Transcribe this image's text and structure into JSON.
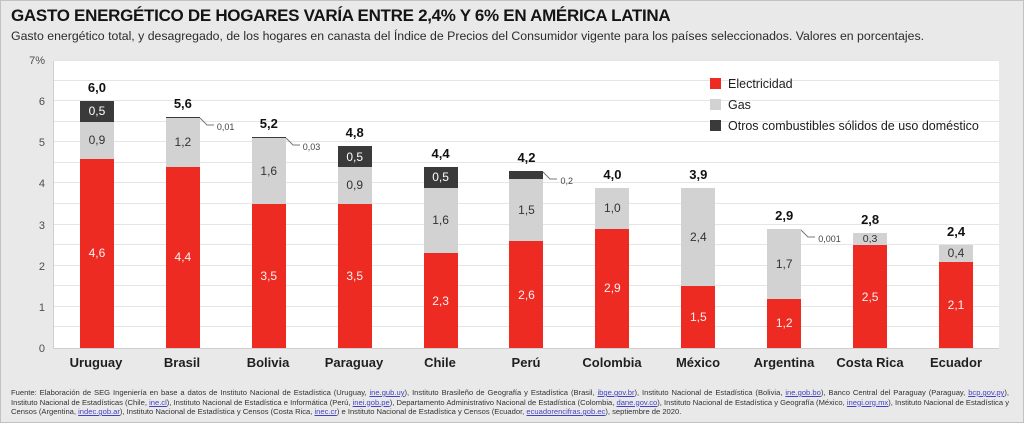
{
  "header": {
    "title": "GASTO ENERGÉTICO DE HOGARES VARÍA ENTRE 2,4% Y 6% EN AMÉRICA LATINA",
    "subtitle": "Gasto energético total, y desagregado, de los hogares en canasta del Índice de Precios del Consumidor vigente para los países seleccionados. Valores en porcentajes."
  },
  "colors": {
    "electricidad": "#ee2b22",
    "gas": "#d2d2d2",
    "otros": "#3a3a3a",
    "background": "#e9e9e9",
    "plot": "#ffffff"
  },
  "chart_data": {
    "type": "bar",
    "stacked": true,
    "ylim": [
      0,
      7
    ],
    "ytick_step": 0.5,
    "ytick_labels": [
      "0",
      "1",
      "2",
      "3",
      "4",
      "5",
      "6",
      "7%"
    ],
    "grid": true,
    "legend_position": "top-right",
    "categories": [
      "Uruguay",
      "Brasil",
      "Bolivia",
      "Paraguay",
      "Chile",
      "Perú",
      "Colombia",
      "México",
      "Argentina",
      "Costa Rica",
      "Ecuador"
    ],
    "series": [
      {
        "name": "Electricidad",
        "color": "#ee2b22",
        "values": [
          4.6,
          4.4,
          3.5,
          3.5,
          2.3,
          2.6,
          2.9,
          1.5,
          1.2,
          2.5,
          2.1
        ],
        "labels": [
          "4,6",
          "4,4",
          "3,5",
          "3,5",
          "2,3",
          "2,6",
          "2,9",
          "1,5",
          "1,2",
          "2,5",
          "2,1"
        ],
        "label_mode": [
          "inside",
          "inside",
          "inside",
          "inside",
          "inside",
          "inside",
          "inside",
          "inside",
          "inside",
          "inside",
          "inside"
        ]
      },
      {
        "name": "Gas",
        "color": "#d2d2d2",
        "values": [
          0.9,
          1.2,
          1.6,
          0.9,
          1.6,
          1.5,
          1.0,
          2.4,
          1.7,
          0.3,
          0.4
        ],
        "labels": [
          "0,9",
          "1,2",
          "1,6",
          "0,9",
          "1,6",
          "1,5",
          "1,0",
          "2,4",
          "1,7",
          "0,3",
          "0,4"
        ],
        "label_mode": [
          "inside",
          "inside",
          "inside",
          "inside",
          "inside",
          "inside",
          "inside",
          "inside",
          "inside",
          "inside",
          "inside"
        ]
      },
      {
        "name": "Otros combustibles sólidos de uso doméstico",
        "color": "#3a3a3a",
        "values": [
          0.5,
          0.01,
          0.03,
          0.5,
          0.5,
          0.2,
          0,
          0,
          0.001,
          0,
          0
        ],
        "labels": [
          "0,5",
          "0,01",
          "0,03",
          "0,5",
          "0,5",
          "0,2",
          "",
          "",
          "0,001",
          "",
          ""
        ],
        "label_mode": [
          "inside",
          "callout",
          "callout",
          "inside",
          "inside",
          "callout",
          "none",
          "none",
          "callout",
          "none",
          "none"
        ]
      }
    ],
    "totals": [
      "6,0",
      "5,6",
      "5,2",
      "4,8",
      "4,4",
      "4,2",
      "4,0",
      "3,9",
      "2,9",
      "2,8",
      "2,4"
    ],
    "title": "GASTO ENERGÉTICO DE HOGARES VARÍA ENTRE 2,4% Y 6% EN AMÉRICA LATINA",
    "xlabel": "",
    "ylabel": "%"
  },
  "legend": [
    {
      "label": "Electricidad",
      "color": "#ee2b22"
    },
    {
      "label": "Gas",
      "color": "#d2d2d2"
    },
    {
      "label": "Otros combustibles sólidos de uso doméstico",
      "color": "#3a3a3a"
    }
  ],
  "footer": {
    "parts": [
      {
        "t": "Fuente: Elaboración de SEG Ingeniería en base a datos de Instituto Nacional de Estadística (Uruguay, "
      },
      {
        "t": "ine.gub.uy",
        "link": true
      },
      {
        "t": "), Instituto Brasileño de Geografía y Estadística (Brasil, "
      },
      {
        "t": "ibge.gov.br",
        "link": true
      },
      {
        "t": "), Instituto Nacional de Estadística (Bolivia, "
      },
      {
        "t": "ine.gob.bo",
        "link": true
      },
      {
        "t": "), Banco Central del Paraguay (Paraguay, "
      },
      {
        "t": "bcp.gov.py",
        "link": true
      },
      {
        "t": "), Instituto Nacional de Estadísticas (Chile, "
      },
      {
        "t": "ine.cl",
        "link": true
      },
      {
        "t": "), Instituto Nacional de Estadística e Informática (Perú, "
      },
      {
        "t": "inei.gob.pe",
        "link": true
      },
      {
        "t": "), Departamento Administrativo Nacional de Estadística (Colombia, "
      },
      {
        "t": "dane.gov.co",
        "link": true
      },
      {
        "t": "), Instituto Nacional de Estadística y Geografía (México, "
      },
      {
        "t": "inegi.org.mx",
        "link": true
      },
      {
        "t": "), Instituto Nacional de Estadística y Censos (Argentina, "
      },
      {
        "t": "indec.gob.ar",
        "link": true
      },
      {
        "t": "), Instituto Nacional de Estadística y Censos (Costa Rica, "
      },
      {
        "t": "inec.cr",
        "link": true
      },
      {
        "t": ") e Instituto Nacional de Estadística y Censos (Ecuador, "
      },
      {
        "t": "ecuadorencifras.gob.ec",
        "link": true
      },
      {
        "t": "), septiembre de 2020."
      }
    ]
  }
}
